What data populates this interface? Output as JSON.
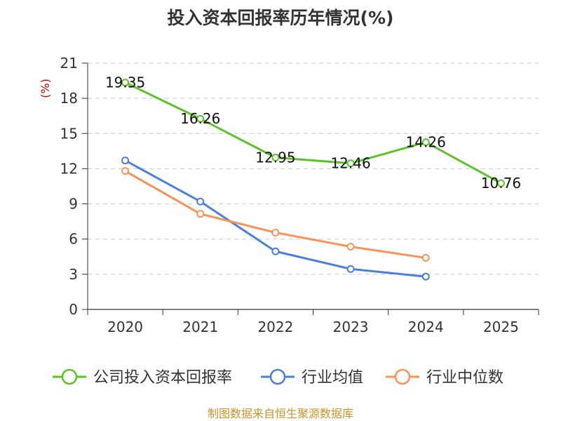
{
  "chart_data": {
    "type": "line",
    "title": "投入资本回报率历年情况(%)",
    "ylabel": "(%)",
    "xlabel": "",
    "categories": [
      "2020",
      "2021",
      "2022",
      "2023",
      "2024",
      "2025"
    ],
    "ylim": [
      0,
      21
    ],
    "yticks": [
      0,
      3,
      6,
      9,
      12,
      15,
      18,
      21
    ],
    "grid": true,
    "legend_position": "bottom",
    "series": [
      {
        "name": "公司投入资本回报率",
        "color": "#5cc22a",
        "values": [
          19.35,
          16.26,
          12.95,
          12.46,
          14.26,
          10.76
        ],
        "labels": [
          "19.35",
          "16.26",
          "12.95",
          "12.46",
          "14.26",
          "10.76"
        ],
        "show_labels": true
      },
      {
        "name": "行业均值",
        "color": "#4a7fdc",
        "values": [
          12.7,
          9.2,
          4.95,
          3.45,
          2.8,
          null
        ],
        "show_labels": false
      },
      {
        "name": "行业中位数",
        "color": "#f59358",
        "values": [
          11.8,
          8.15,
          6.55,
          5.35,
          4.4,
          null
        ],
        "show_labels": false
      }
    ],
    "source": "制图数据来自恒生聚源数据库",
    "ylabel_color": "#cc0000",
    "source_color": "#c8932a"
  }
}
